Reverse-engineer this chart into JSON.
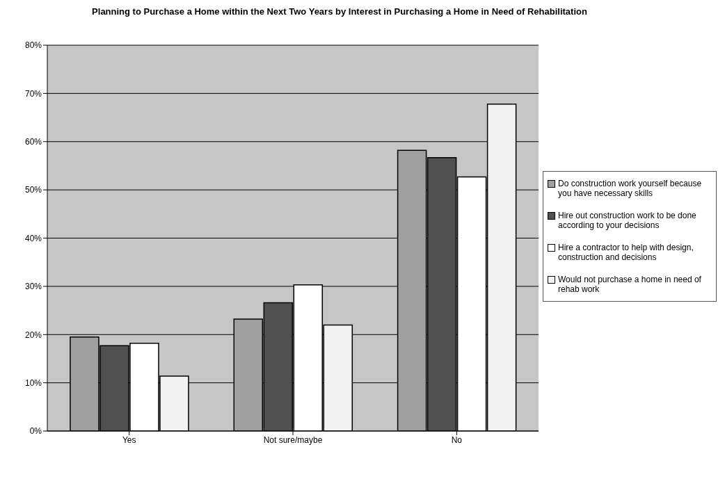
{
  "chart_data": {
    "type": "bar",
    "title": "Planning to Purchase a Home within the Next Two Years by Interest in Purchasing a Home in Need of Rehabilitation",
    "categories": [
      "Yes",
      "Not sure/maybe",
      "No"
    ],
    "series": [
      {
        "name": "Do construction work yourself because you have necessary skills",
        "color": "#a0a0a0",
        "values": [
          19.5,
          23.2,
          58.2
        ]
      },
      {
        "name": "Hire out construction work to be done according to your decisions",
        "color": "#505050",
        "values": [
          17.7,
          26.6,
          56.7
        ]
      },
      {
        "name": "Hire a contractor to help with design, construction and decisions",
        "color": "#ffffff",
        "values": [
          18.2,
          30.3,
          52.7
        ]
      },
      {
        "name": "Would not purchase a home in need of rehab work",
        "color": "#f2f2f2",
        "values": [
          11.4,
          22.0,
          67.8
        ]
      }
    ],
    "ylim": [
      0,
      80
    ],
    "yticks": [
      {
        "value": 0,
        "label": "0%"
      },
      {
        "value": 10,
        "label": "10%"
      },
      {
        "value": 20,
        "label": "20%"
      },
      {
        "value": 30,
        "label": "30%"
      },
      {
        "value": 40,
        "label": "40%"
      },
      {
        "value": 50,
        "label": "50%"
      },
      {
        "value": 60,
        "label": "60%"
      },
      {
        "value": 70,
        "label": "70%"
      },
      {
        "value": 80,
        "label": "80%"
      }
    ],
    "grid": "y",
    "legend": "right"
  }
}
